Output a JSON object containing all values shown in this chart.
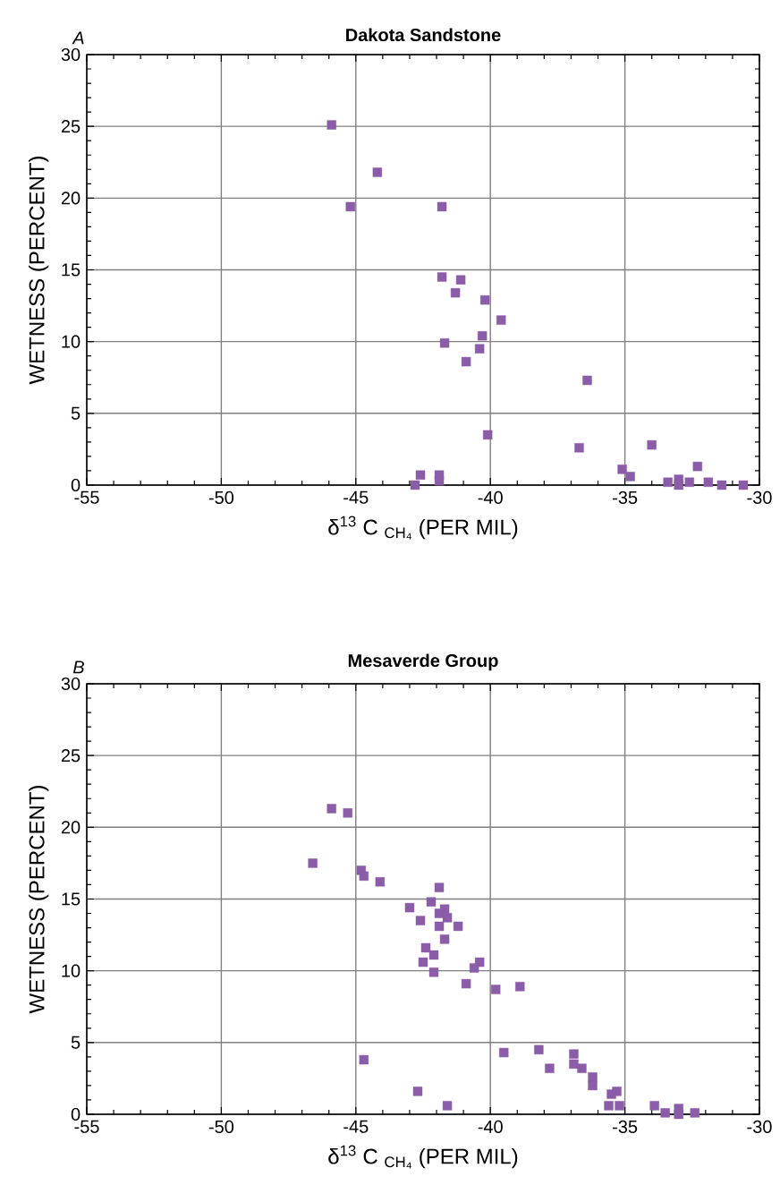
{
  "chart_data": [
    {
      "type": "scatter",
      "title": "Dakota Sandstone",
      "annotations": [
        "*A*"
      ],
      "xlabel": "δ$^{13}$ C $_{CH₄}$   (PER MIL)",
      "ylabel": "WETNESS (PERCENT)",
      "xlim": [
        -55,
        -30
      ],
      "ylim": [
        0,
        30
      ],
      "xticks": [
        -55,
        -50,
        -45,
        -40,
        -35,
        -30
      ],
      "yticks": [
        0,
        5,
        10,
        15,
        20,
        25,
        30
      ],
      "grid": true,
      "marker": "square",
      "series": [
        {
          "color": "#8b5ca8",
          "x": [
            -45.9,
            -45.2,
            -44.2,
            -41.8,
            -41.8,
            -41.1,
            -41.3,
            -40.2,
            -39.6,
            -40.3,
            -41.7,
            -40.4,
            -40.9,
            -40.1,
            -42.6,
            -41.9,
            -41.9,
            -42.8,
            -36.4,
            -36.7,
            -34.0,
            -35.1,
            -34.8,
            -32.3,
            -33.4,
            -33.0,
            -33.0,
            -32.6,
            -31.9,
            -31.4,
            -30.6
          ],
          "values": [
            25.1,
            19.4,
            21.8,
            19.4,
            14.5,
            14.3,
            13.4,
            12.9,
            11.5,
            10.4,
            9.9,
            9.5,
            8.6,
            3.5,
            0.7,
            0.7,
            0.3,
            0,
            7.3,
            2.6,
            2.8,
            1.1,
            0.6,
            1.3,
            0.2,
            0.4,
            0,
            0.2,
            0.2,
            0,
            0
          ]
        }
      ]
    },
    {
      "type": "scatter",
      "title": "Mesaverde Group",
      "annotations": [
        "*B*"
      ],
      "xlabel": "δ$^{13}$ C $_{CH₄}$   (PER MIL)",
      "ylabel": "WETNESS (PERCENT)",
      "xlim": [
        -55,
        -30
      ],
      "ylim": [
        0,
        30
      ],
      "xticks": [
        -55,
        -50,
        -45,
        -40,
        -35,
        -30
      ],
      "yticks": [
        0,
        5,
        10,
        15,
        20,
        25,
        30
      ],
      "grid": true,
      "marker": "square",
      "series": [
        {
          "color": "#8b5ca8",
          "x": [
            -45.9,
            -45.3,
            -46.6,
            -44.8,
            -44.7,
            -44.1,
            -41.9,
            -42.2,
            -43.0,
            -41.7,
            -41.9,
            -41.6,
            -42.6,
            -41.9,
            -41.2,
            -41.7,
            -42.4,
            -42.1,
            -42.5,
            -40.4,
            -40.6,
            -42.1,
            -40.9,
            -39.8,
            -38.9,
            -39.5,
            -38.2,
            -37.8,
            -44.7,
            -42.7,
            -41.6,
            -36.9,
            -36.9,
            -36.6,
            -36.2,
            -36.2,
            -35.5,
            -35.3,
            -35.6,
            -35.2,
            -33.9,
            -33.5,
            -33.0,
            -33.0,
            -32.4
          ],
          "values": [
            21.3,
            21.0,
            17.5,
            17.0,
            16.6,
            16.2,
            15.8,
            14.8,
            14.4,
            14.3,
            14.0,
            13.7,
            13.5,
            13.1,
            13.1,
            12.2,
            11.6,
            11.1,
            10.6,
            10.6,
            10.2,
            9.9,
            9.1,
            8.7,
            8.9,
            4.3,
            4.5,
            3.2,
            3.8,
            1.6,
            0.6,
            4.2,
            3.5,
            3.2,
            2.6,
            2.0,
            1.4,
            1.6,
            0.6,
            0.6,
            0.6,
            0.1,
            0.4,
            0,
            0.1
          ]
        }
      ]
    }
  ]
}
